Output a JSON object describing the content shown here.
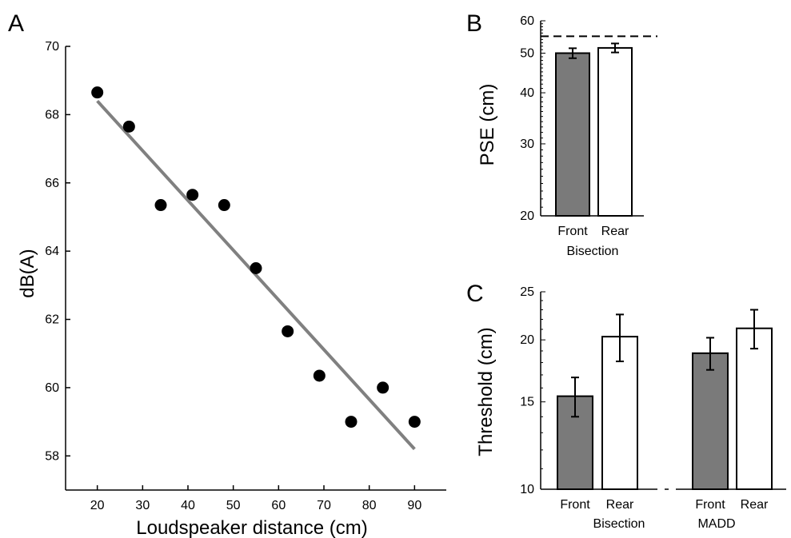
{
  "chart_data": [
    {
      "panel": "A",
      "type": "scatter",
      "xlabel": "Loudspeaker distance (cm)",
      "ylabel": "dB(A)",
      "xlim": [
        13,
        97
      ],
      "ylim": [
        57,
        70
      ],
      "xticks": [
        "20",
        "30",
        "40",
        "50",
        "60",
        "70",
        "80",
        "90"
      ],
      "yticks": [
        "58",
        "60",
        "62",
        "64",
        "66",
        "68",
        "70"
      ],
      "x": [
        20,
        27,
        34,
        41,
        48,
        55,
        62,
        69,
        76,
        83,
        90
      ],
      "y": [
        68.65,
        67.65,
        65.35,
        65.65,
        65.35,
        63.5,
        61.65,
        60.35,
        59.0,
        60.0,
        59.0
      ],
      "fit_line": {
        "x": [
          20,
          90
        ],
        "y": [
          68.4,
          58.2
        ],
        "color": "#808080"
      },
      "point_color": "#000000"
    },
    {
      "panel": "B",
      "type": "bar",
      "scale": "log",
      "ylabel": "PSE (cm)",
      "ylim": [
        20,
        60
      ],
      "yticks": [
        "20",
        "30",
        "40",
        "50",
        "60"
      ],
      "categories": [
        "Front",
        "Rear"
      ],
      "group_label": "Bisection",
      "values": [
        50.0,
        51.5
      ],
      "errors": [
        1.4,
        1.3
      ],
      "bar_colors": [
        "#7a7a7a",
        "#ffffff"
      ],
      "reference_line": 55
    },
    {
      "panel": "C",
      "type": "bar",
      "scale": "log",
      "ylabel": "Threshold (cm)",
      "ylim": [
        10,
        25
      ],
      "yticks": [
        "10",
        "15",
        "20",
        "25"
      ],
      "groups": [
        {
          "label": "Bisection",
          "categories": [
            "Front",
            "Rear"
          ],
          "values": [
            15.4,
            20.3
          ],
          "errors": [
            1.4,
            2.2
          ]
        },
        {
          "label": "MADD",
          "categories": [
            "Front",
            "Rear"
          ],
          "values": [
            18.8,
            21.1
          ],
          "errors": [
            1.4,
            1.9
          ]
        }
      ],
      "bar_colors": [
        "#7a7a7a",
        "#ffffff"
      ]
    }
  ]
}
